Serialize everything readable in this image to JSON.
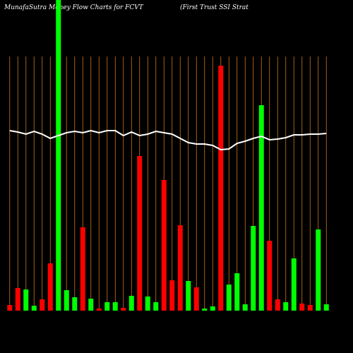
{
  "chart_data": {
    "type": "bar",
    "title": "MunafaSutra  Money Flow  Charts for FCVT",
    "subtitle": "(First Trust SSI Strat",
    "categories": [
      null,
      null,
      null,
      null,
      null,
      null,
      null,
      null,
      null,
      null,
      null,
      null,
      null,
      null,
      null,
      null,
      null,
      null,
      null,
      null,
      null,
      null,
      null,
      null,
      null,
      null,
      null,
      null,
      null,
      null,
      null,
      null,
      null,
      null,
      null,
      null,
      null,
      null,
      null,
      null
    ],
    "values": [
      8,
      32,
      30,
      7,
      16,
      67,
      440,
      29,
      19,
      118,
      17,
      3,
      12,
      12,
      4,
      21,
      219,
      20,
      12,
      185,
      43,
      121,
      42,
      33,
      3,
      6,
      347,
      37,
      53,
      9,
      120,
      291,
      99,
      16,
      12,
      74,
      10,
      8,
      115,
      9
    ],
    "colors": [
      "#ff0000",
      "#ff0000",
      "#00ff00",
      "#00ff00",
      "#ff0000",
      "#ff0000",
      "#00ff00",
      "#00ff00",
      "#00ff00",
      "#ff0000",
      "#00ff00",
      "#ff0000",
      "#00ff00",
      "#00ff00",
      "#ff0000",
      "#00ff00",
      "#ff0000",
      "#00ff00",
      "#00ff00",
      "#ff0000",
      "#ff0000",
      "#ff0000",
      "#00ff00",
      "#ff0000",
      "#00ff00",
      "#00ff00",
      "#ff0000",
      "#00ff00",
      "#00ff00",
      "#00ff00",
      "#00ff00",
      "#00ff00",
      "#ff0000",
      "#ff0000",
      "#00ff00",
      "#00ff00",
      "#ff0000",
      "#ff0000",
      "#00ff00",
      "#00ff00"
    ],
    "line": {
      "color": "#ffffff",
      "values": [
        255,
        253,
        250,
        254,
        250,
        244,
        248,
        252,
        254,
        252,
        255,
        252,
        255,
        255,
        248,
        253,
        248,
        250,
        254,
        252,
        250,
        244,
        238,
        236,
        236,
        234,
        228,
        229,
        237,
        240,
        244,
        247,
        242,
        243,
        245,
        249,
        249,
        250,
        250,
        251
      ]
    },
    "ylim": [
      0,
      440
    ],
    "grid_color": "#c8781e"
  }
}
